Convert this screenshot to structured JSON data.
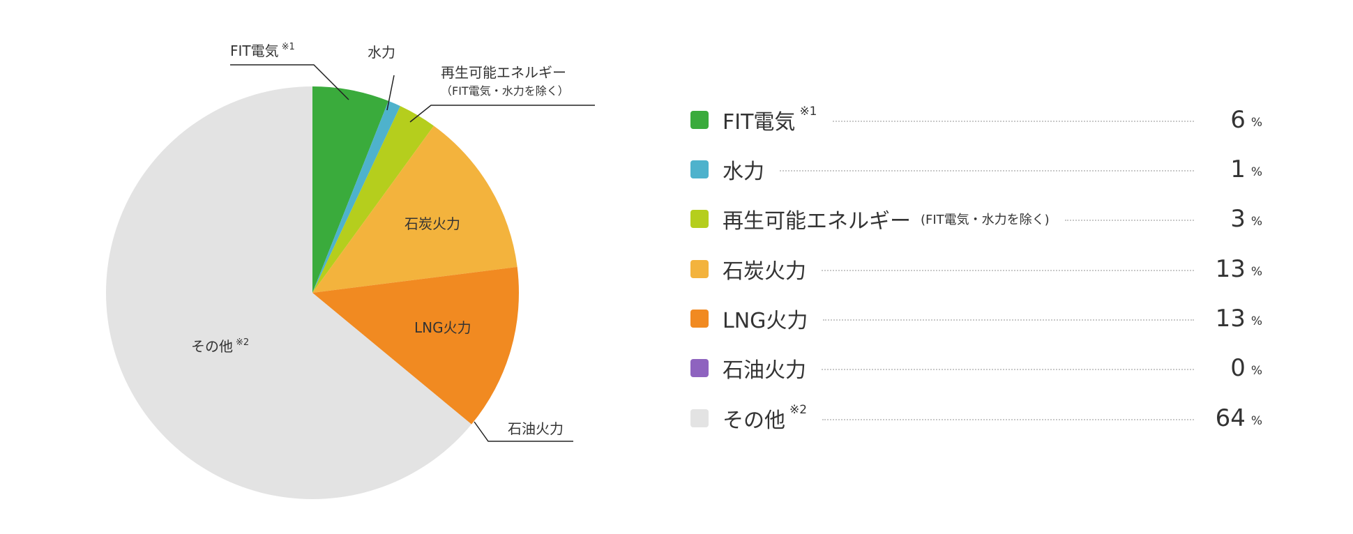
{
  "chart_data": {
    "type": "pie",
    "start": "top",
    "direction": "clockwise",
    "slices": [
      {
        "label": "FIT電気",
        "note": "※1",
        "value": 6,
        "color": "#3aab3c"
      },
      {
        "label": "水力",
        "value": 1,
        "color": "#4eb2cc"
      },
      {
        "label": "再生可能エネルギー",
        "label_sub": "（FIT電気・水力を除く）",
        "legend_sub": "(FIT電気・水力を除く)",
        "value": 3,
        "color": "#b5ce1d"
      },
      {
        "label": "石炭火力",
        "value": 13,
        "color": "#f3b33d"
      },
      {
        "label": "LNG火力",
        "value": 13,
        "color": "#f18a21"
      },
      {
        "label": "石油火力",
        "value": 0,
        "color": "#8e63bf"
      },
      {
        "label": "その他",
        "note": "※2",
        "value": 64,
        "color": "#e3e3e3"
      }
    ],
    "unit": "%"
  }
}
